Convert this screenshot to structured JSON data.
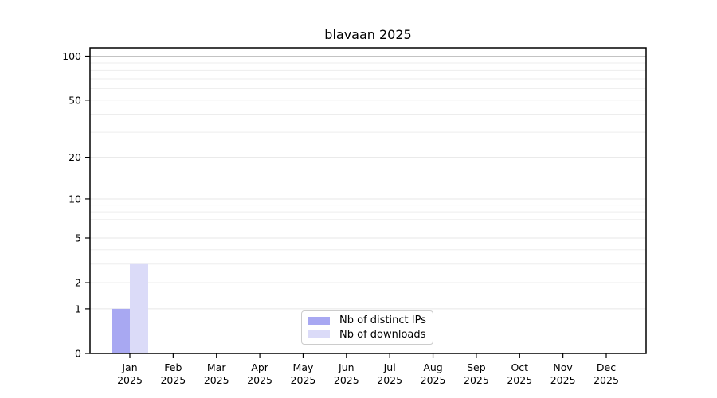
{
  "chart_data": {
    "type": "bar",
    "title": "blavaan 2025",
    "categories": [
      "Jan 2025",
      "Feb 2025",
      "Mar 2025",
      "Apr 2025",
      "May 2025",
      "Jun 2025",
      "Jul 2025",
      "Aug 2025",
      "Sep 2025",
      "Oct 2025",
      "Nov 2025",
      "Dec 2025"
    ],
    "series": [
      {
        "name": "Nb of distinct IPs",
        "color": "#a8a8f2",
        "values": [
          1,
          0,
          0,
          0,
          0,
          0,
          0,
          0,
          0,
          0,
          0,
          0
        ]
      },
      {
        "name": "Nb of downloads",
        "color": "#dbdbf8",
        "values": [
          3,
          0,
          0,
          0,
          0,
          0,
          0,
          0,
          0,
          0,
          0,
          0
        ]
      }
    ],
    "xlabel": "",
    "ylabel": "",
    "y_axis": {
      "scale": "log1p",
      "major_ticks": [
        0,
        1,
        2,
        5,
        10,
        20,
        50,
        100
      ],
      "minor_gridlines": [
        3,
        4,
        6,
        7,
        8,
        9,
        30,
        40,
        60,
        70,
        80,
        90
      ],
      "ylim": [
        0,
        114
      ]
    },
    "grid": "horizontal",
    "legend": {
      "position": "lower-center-inside"
    },
    "colors": {
      "gridline_minor": "#ededed",
      "gridline_major": "#e7e7e7",
      "gridline_top": "#c3c3c3",
      "spine": "#000000"
    }
  }
}
